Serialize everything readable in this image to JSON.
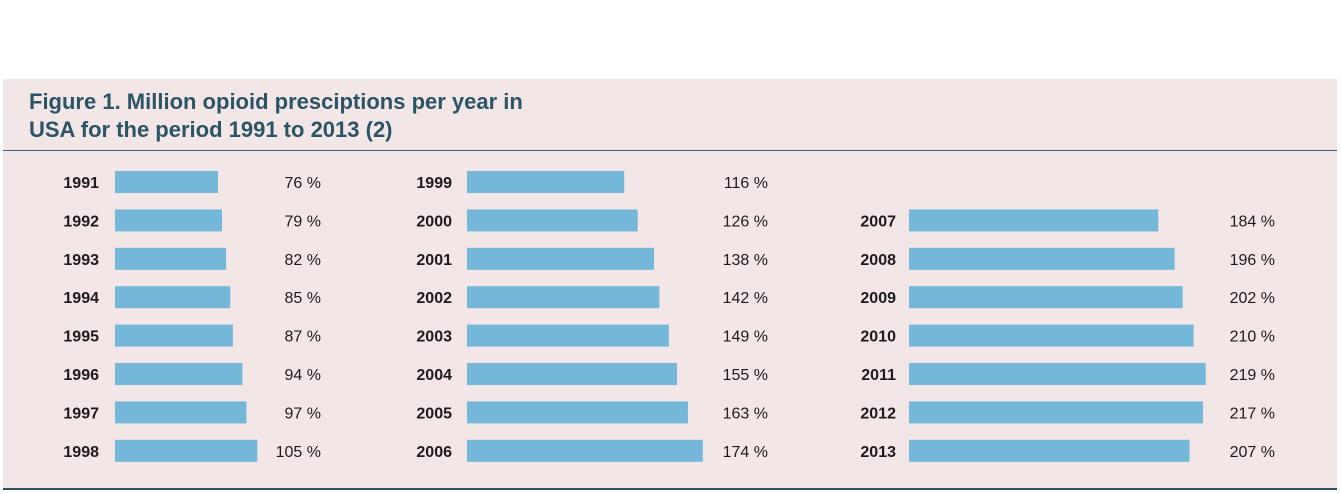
{
  "figure": {
    "title_line1": "Figure 1. Million opioid presciptions per year in",
    "title_line2": "USA for the period 1991 to 2013 (2)"
  },
  "colors": {
    "background": "#f3e6e7",
    "bar": "#74b7d8",
    "title": "#2b5566",
    "rule": "#3b6676"
  },
  "chart_data": {
    "type": "bar",
    "orientation": "horizontal",
    "title": "Figure 1. Million opioid presciptions per year in USA for the period 1991 to 2013 (2)",
    "value_suffix": " %",
    "grid": false,
    "columns": [
      {
        "categories": [
          "1991",
          "1992",
          "1993",
          "1994",
          "1995",
          "1996",
          "1997",
          "1998"
        ],
        "values": [
          76,
          79,
          82,
          85,
          87,
          94,
          97,
          105
        ]
      },
      {
        "categories": [
          "1999",
          "2000",
          "2001",
          "2002",
          "2003",
          "2004",
          "2005",
          "2006"
        ],
        "values": [
          116,
          126,
          138,
          142,
          149,
          155,
          163,
          174
        ]
      },
      {
        "categories": [
          "2007",
          "2008",
          "2009",
          "2010",
          "2011",
          "2012",
          "2013"
        ],
        "values": [
          184,
          196,
          202,
          210,
          219,
          217,
          207
        ]
      }
    ]
  }
}
